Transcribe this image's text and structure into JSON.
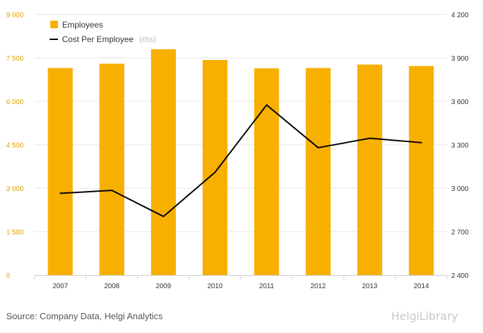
{
  "chart_data": {
    "type": "bar+line",
    "categories": [
      "2007",
      "2008",
      "2009",
      "2010",
      "2011",
      "2012",
      "2013",
      "2014"
    ],
    "series": [
      {
        "name": "Employees",
        "type": "bar",
        "axis": "left",
        "color": "#f7b000",
        "values": [
          7150,
          7300,
          7800,
          7430,
          7140,
          7150,
          7270,
          7220
        ]
      },
      {
        "name": "Cost Per Employee",
        "suffix": "(rhs)",
        "type": "line",
        "axis": "right",
        "color": "#000000",
        "values": [
          2965,
          2985,
          2805,
          3110,
          3575,
          3280,
          3345,
          3315
        ]
      }
    ],
    "y_left": {
      "min": 0,
      "max": 9000,
      "ticks": [
        "0",
        "1 500",
        "3 000",
        "4 500",
        "6 000",
        "7 500",
        "9 000"
      ]
    },
    "y_right": {
      "min": 2400,
      "max": 4200,
      "ticks": [
        "2 400",
        "2 700",
        "3 000",
        "3 300",
        "3 600",
        "3 900",
        "4 200"
      ]
    },
    "grid": true,
    "legend_position": "top-left"
  },
  "source": "Source: Company Data, Helgi Analytics",
  "logo_text": "HelgiLibrary"
}
